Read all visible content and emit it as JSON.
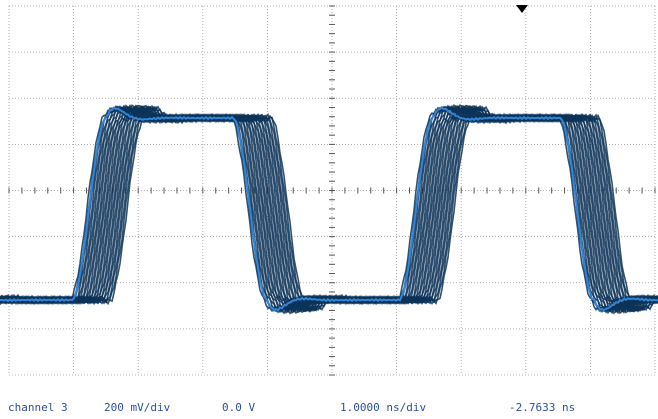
{
  "readouts": {
    "channel": "channel 3",
    "volts_per_div": "200 mV/div",
    "offset": "0.0 V",
    "time_per_div": "1.0000 ns/div",
    "trigger_delay": "-2.7633 ns"
  },
  "display": {
    "divisions_x": 10,
    "divisions_y": 8,
    "minor_ticks_per_div": 5,
    "grid": true,
    "trigger_marker_icon": "triangle-down-icon"
  },
  "colors": {
    "background": "#ffffff",
    "grid": "#9a9a9a",
    "persistence_trace": "#0d3358",
    "average_trace": "#2f86d8",
    "readout_text": "#2f4f9a"
  }
}
